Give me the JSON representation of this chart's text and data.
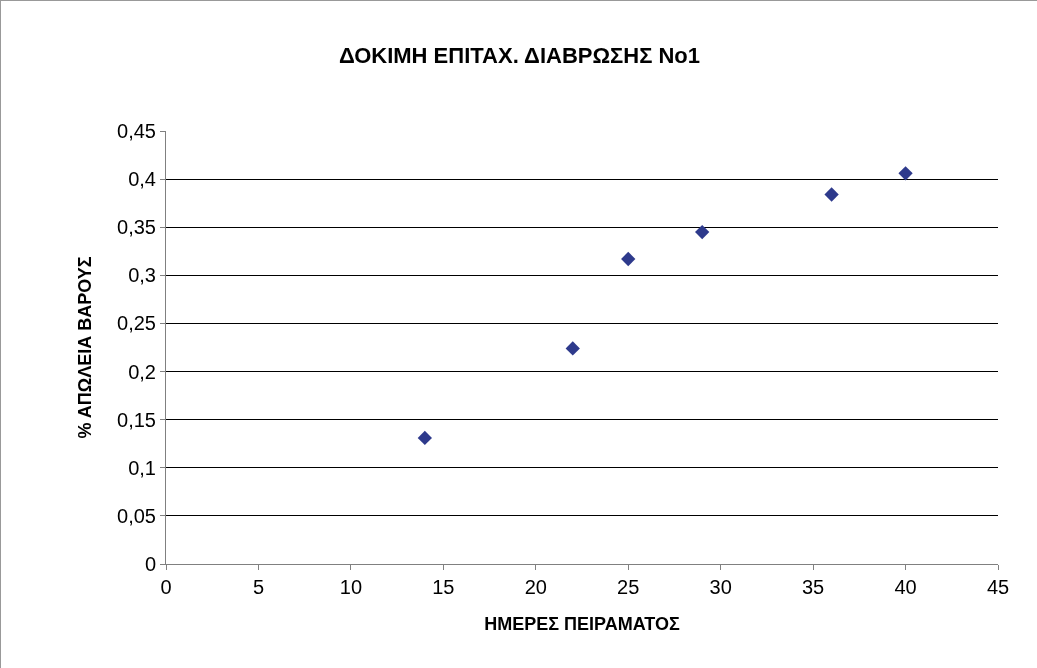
{
  "chart_data": {
    "type": "scatter",
    "title": "ΔΟΚΙΜΗ ΕΠΙΤΑΧ. ΔΙΑΒΡΩΣΗΣ No1",
    "xlabel": "ΗΜΕΡΕΣ ΠΕΙΡΑΜΑΤΟΣ",
    "ylabel": "% ΑΠΩΛΕΙΑ ΒΑΡΟΥΣ",
    "x": [
      14,
      22,
      25,
      29,
      36,
      40
    ],
    "series": [
      {
        "color": "#2e3a8c",
        "values": [
          0.131,
          0.224,
          0.317,
          0.345,
          0.384,
          0.406
        ]
      }
    ],
    "xlim": [
      0,
      45
    ],
    "xticks": [
      0,
      5,
      10,
      15,
      20,
      25,
      30,
      35,
      40,
      45
    ],
    "ylim": [
      0,
      0.45
    ],
    "yticks": [
      0,
      {
        "value": 0.05,
        "label": "0,05"
      },
      {
        "value": 0.1,
        "label": "0,1"
      },
      {
        "value": 0.15,
        "label": "0,15"
      },
      {
        "value": 0.2,
        "label": "0,2"
      },
      {
        "value": 0.25,
        "label": "0,25"
      },
      {
        "value": 0.3,
        "label": "0,3"
      },
      {
        "value": 0.35,
        "label": "0,35"
      },
      {
        "value": 0.4,
        "label": "0,4"
      },
      {
        "value": 0.45,
        "label": "0,45"
      }
    ],
    "grid": "y",
    "marker": "diamond"
  }
}
